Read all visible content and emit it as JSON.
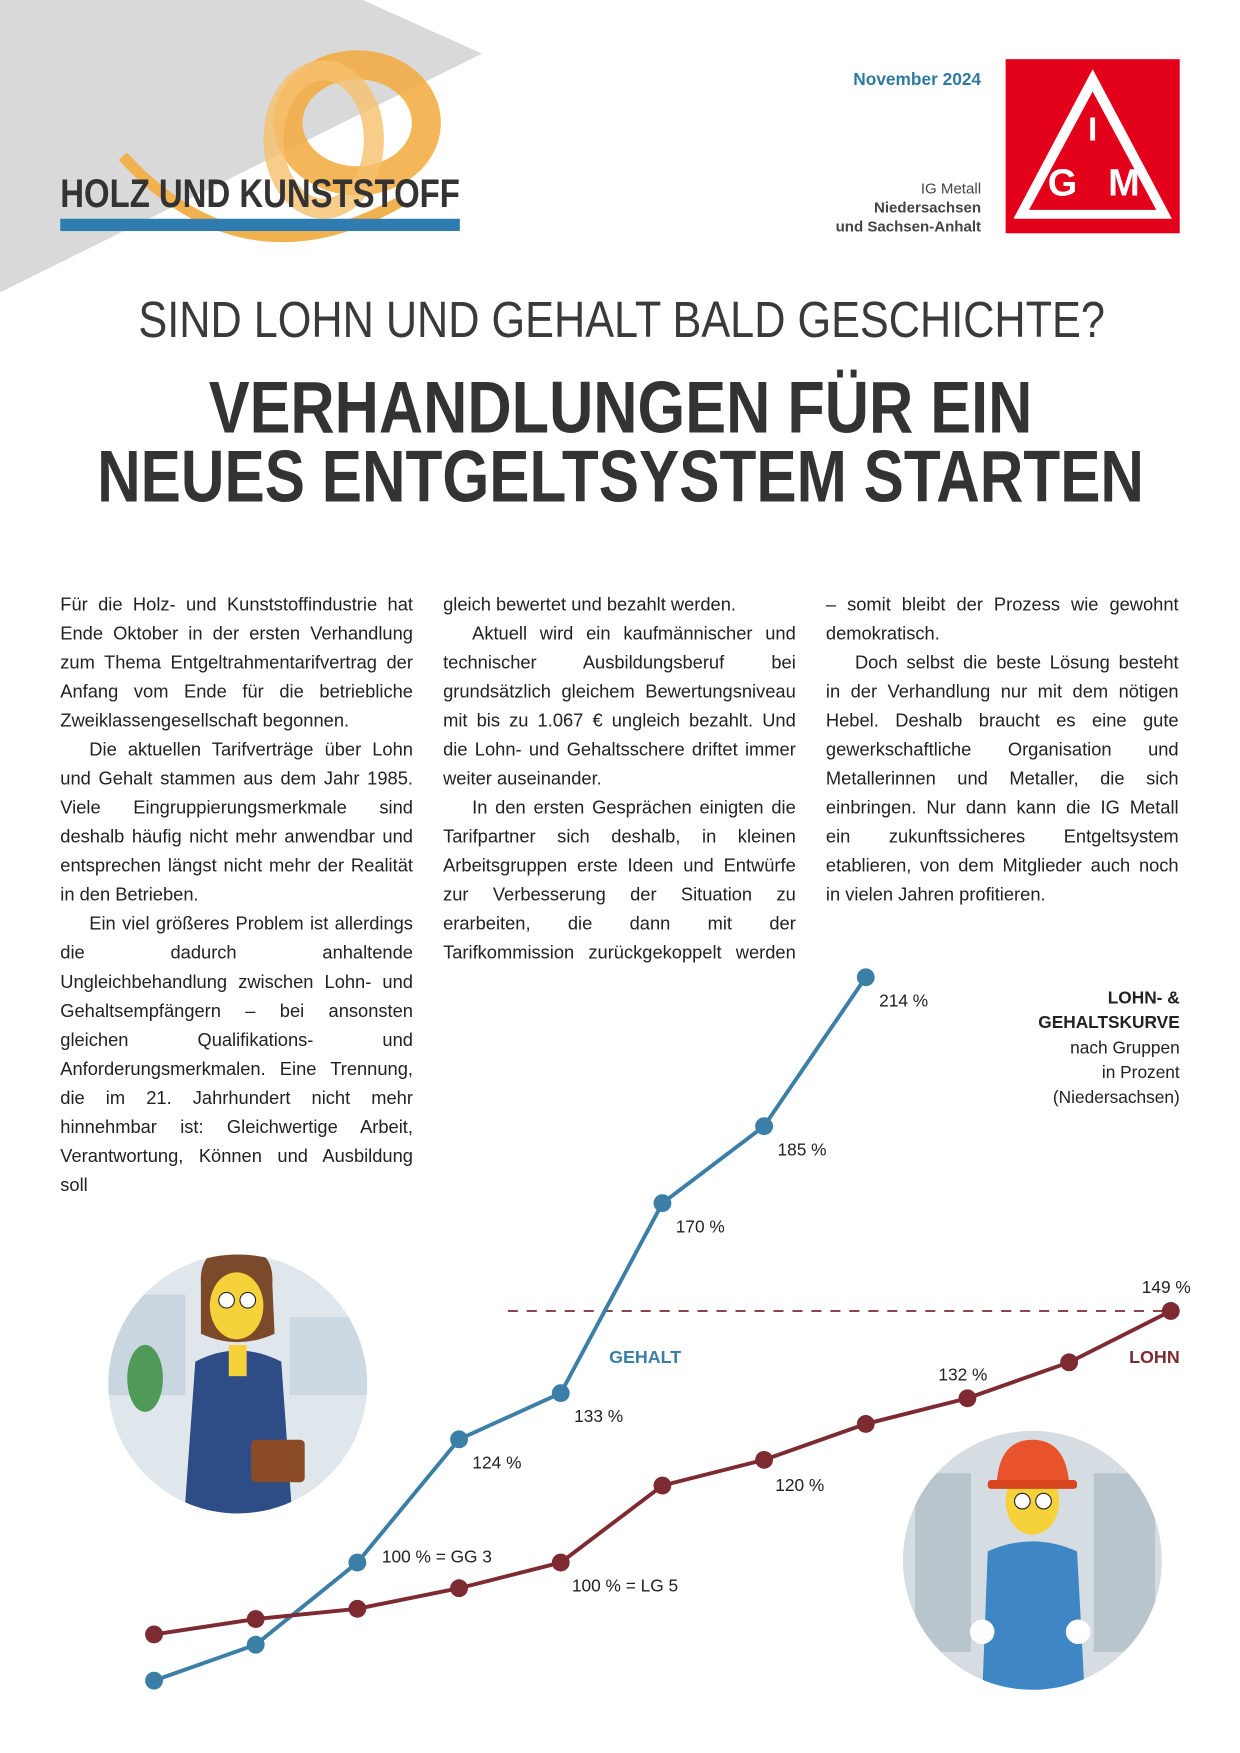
{
  "header": {
    "brand": "HOLZ UND KUNSTSTOFF",
    "date": "November 2024",
    "org": [
      "IG Metall",
      "Niedersachsen",
      "und Sachsen-Anhalt"
    ],
    "logo": [
      "I",
      "G",
      "M"
    ]
  },
  "headline": {
    "kicker": "SIND LOHN UND GEHALT BALD GESCHICHTE?",
    "title": [
      "VERHANDLUNGEN FÜR EIN",
      "NEUES ENTGELTSYSTEM STARTEN"
    ]
  },
  "body": {
    "columns": [
      [
        "Für die Holz- und Kunststoffindustrie hat Ende Oktober in der ersten Verhandlung zum Thema Entgeltrahmentarifvertrag der Anfang vom Ende für die betriebliche Zweiklassengesellschaft begonnen.",
        "Die aktuellen Tarifverträge über Lohn und Gehalt stammen aus dem Jahr 1985. Viele Eingruppierungsmerkmale sind deshalb häufig nicht mehr anwendbar und entsprechen längst nicht mehr der Realität in den Betrieben.",
        "Ein viel größeres Problem ist allerdings die dadurch anhaltende Ungleichbehandlung zwischen Lohn- und Gehaltsempfängern – bei ansonsten gleichen Qualifikations- und Anforderungsmerkmalen. Eine Trennung, die im 21. Jahrhundert nicht mehr hinnehmbar ist: Gleichwertige Arbeit, Verantwortung, Können und Ausbildung soll"
      ],
      [
        "gleich bewertet und bezahlt werden.",
        "Aktuell wird ein kaufmännischer und technischer Ausbildungsberuf bei grundsätzlich gleichem Bewertungsniveau mit bis zu 1.067 € ungleich bezahlt. Und die Lohn- und Gehaltsschere driftet immer weiter auseinander.",
        "In den ersten Gesprächen einigten die Tarifpartner sich deshalb, in kleinen Arbeitsgruppen erste Ideen und Entwürfe zur Verbesserung der Situation zu erarbeiten, die dann mit der Tarifkommission zurückgekoppelt werden"
      ],
      [
        "– somit bleibt der Prozess wie gewohnt demokratisch.",
        "Doch selbst die beste Lösung besteht in der Verhandlung nur mit dem nötigen Hebel. Deshalb braucht es eine gute gewerkschaftliche Organisation und Metallerinnen und Metaller, die sich einbringen. Nur dann kann die IG Metall ein zukunftssicheres Entgeltsystem etablieren, von dem Mitglieder auch noch in vielen Jahren profitieren."
      ]
    ]
  },
  "chart_data": {
    "type": "line",
    "title": [
      "LOHN- &",
      "GEHALTSKURVE"
    ],
    "subtitle": [
      "nach Gruppen",
      "in Prozent",
      "(Niedersachsen)"
    ],
    "series": [
      {
        "name": "GEHALT",
        "color": "#3b7ea6",
        "values": [
          77,
          84,
          100,
          124,
          133,
          170,
          185,
          214
        ],
        "value_labels": [
          null,
          null,
          "100 % = GG 3",
          "124 %",
          "133 %",
          "170 %",
          "185 %",
          "214 %"
        ]
      },
      {
        "name": "LOHN",
        "color": "#7d2b31",
        "values": [
          86,
          89,
          91,
          95,
          100,
          115,
          120,
          127,
          132,
          139,
          149
        ],
        "value_labels": [
          null,
          null,
          null,
          null,
          "100 % = LG 5",
          null,
          "120 %",
          null,
          "132 %",
          null,
          "149 %"
        ]
      }
    ]
  }
}
